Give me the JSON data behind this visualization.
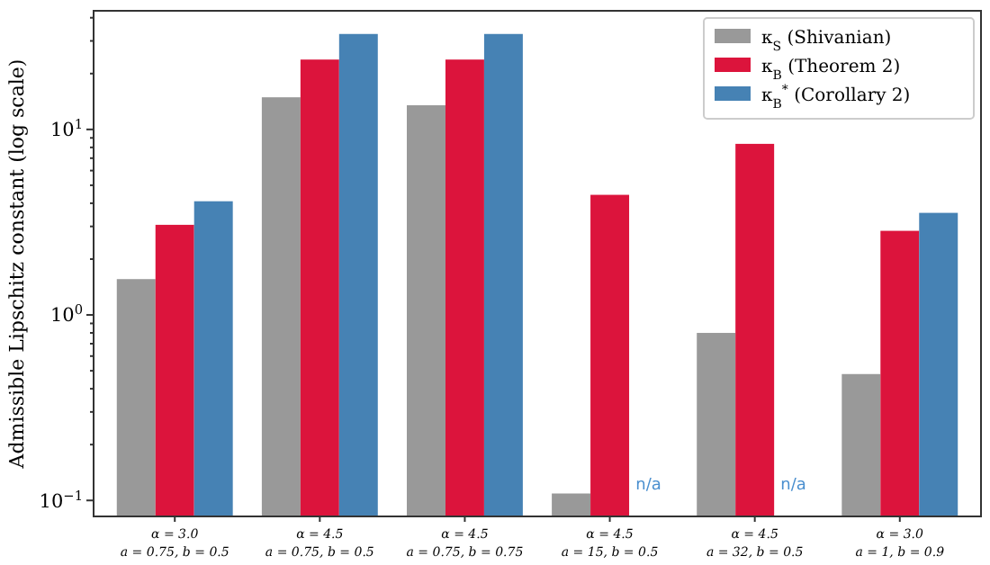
{
  "chart_data": {
    "type": "bar",
    "ylabel": "Admissible Lipschitz constant (log scale)",
    "categories": [
      "α = 3.0\na = 0.75,  b = 0.5",
      "α = 4.5\na = 0.75,  b = 0.5",
      "α = 4.5\na = 0.75,  b = 0.75",
      "α = 4.5\na = 15,  b = 0.5",
      "α = 4.5\na = 32,  b = 0.5",
      "α = 3.0\na = 1,  b = 0.9"
    ],
    "series": [
      {
        "name": "κ$_{S}$ (Shivanian)",
        "color": "#999999",
        "values": [
          1.56,
          14.9,
          13.5,
          0.109,
          0.8,
          0.48
        ]
      },
      {
        "name": "κ$_{B}$ (Theorem 2)",
        "color": "#dc143c",
        "values": [
          3.06,
          23.8,
          23.8,
          4.44,
          8.36,
          2.84
        ]
      },
      {
        "name": "κ$_{B}$$^{*}$ (Corollary 2)",
        "color": "#4682b4",
        "values": [
          4.1,
          32.7,
          32.7,
          null,
          null,
          3.55
        ]
      }
    ],
    "annotations": [
      "n/a",
      "n/a"
    ],
    "log": true,
    "ylim": [
      0.082,
      43.6
    ],
    "yticks": [
      {
        "value": 0.1,
        "label": "10$^{−1}$"
      },
      {
        "value": 0.2,
        "label": null
      },
      {
        "value": 0.3,
        "label": null
      },
      {
        "value": 0.4,
        "label": null
      },
      {
        "value": 0.5,
        "label": null
      },
      {
        "value": 0.6,
        "label": null
      },
      {
        "value": 0.7,
        "label": null
      },
      {
        "value": 0.8,
        "label": null
      },
      {
        "value": 0.9,
        "label": null
      },
      {
        "value": 1,
        "label": "10$^{0}$"
      },
      {
        "value": 2,
        "label": null
      },
      {
        "value": 3,
        "label": null
      },
      {
        "value": 4,
        "label": null
      },
      {
        "value": 5,
        "label": null
      },
      {
        "value": 6,
        "label": null
      },
      {
        "value": 7,
        "label": null
      },
      {
        "value": 8,
        "label": null
      },
      {
        "value": 9,
        "label": null
      },
      {
        "value": 10,
        "label": "10$^{1}$"
      },
      {
        "value": 20,
        "label": null
      },
      {
        "value": 30,
        "label": null
      },
      {
        "value": 40,
        "label": null
      }
    ],
    "grid": false,
    "legend": "top right"
  }
}
